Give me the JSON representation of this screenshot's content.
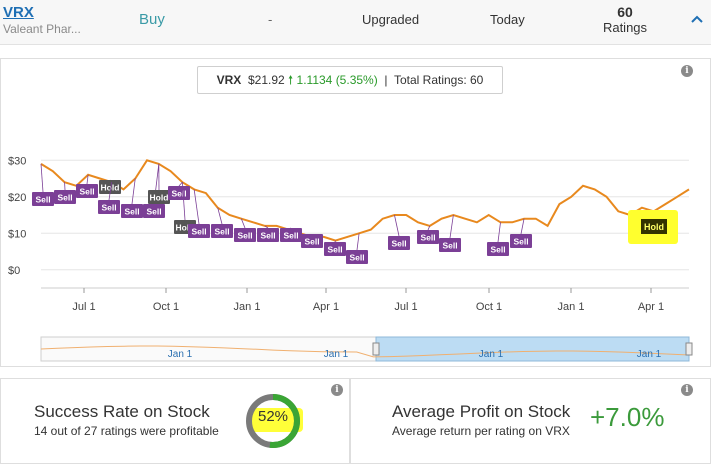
{
  "header": {
    "ticker": "VRX",
    "company": "Valeant Phar...",
    "rating": "Buy",
    "price_target": "-",
    "action": "Upgraded",
    "date": "Today",
    "ratings_count": "60",
    "ratings_label": "Ratings",
    "collapse_icon": "chevron-up-icon"
  },
  "price_summary": {
    "ticker": "VRX",
    "price": "$21.92",
    "change": "1.1134",
    "change_pct": "(5.35%)",
    "separator": "|",
    "total_ratings": "Total Ratings: 60"
  },
  "chart_data": {
    "type": "line",
    "y_ticks": [
      "$30",
      "$20",
      "$10",
      "$0"
    ],
    "x_ticks": [
      "Jul 1",
      "Oct 1",
      "Jan 1",
      "Apr 1",
      "Jul 1",
      "Oct 1",
      "Jan 1",
      "Apr 1"
    ],
    "navigator_labels": [
      "Jan 1",
      "Jan 1",
      "Jan 1",
      "Jan 1"
    ],
    "series": [
      {
        "values": [
          29,
          27,
          24,
          23,
          26,
          25,
          24,
          22,
          25,
          30,
          29,
          27,
          24,
          22,
          21,
          17,
          15,
          14,
          13,
          12,
          12,
          11,
          10,
          9,
          9,
          8,
          9,
          10,
          11,
          14,
          15,
          15,
          13,
          12,
          14,
          15,
          14,
          13,
          15,
          13,
          13,
          14,
          14,
          12,
          18,
          20,
          23,
          22,
          20,
          16,
          15,
          17,
          16,
          18,
          20,
          22
        ]
      }
    ],
    "badges": [
      "Sell",
      "Sell",
      "Sell",
      "Hold",
      "Sell",
      "Sell",
      "Sell",
      "Hold",
      "Sell",
      "Hold",
      "Sell",
      "Sell",
      "Sell",
      "Sell",
      "Sell",
      "Sell",
      "Sell",
      "Sell",
      "Sell",
      "Sell",
      "Sell",
      "Sell",
      "Sell",
      "Sell",
      "Hold"
    ],
    "colors": {
      "line": "#e8891e",
      "sell": "#7b3f96",
      "hold_gray": "#555555",
      "hold_latest": "#333300",
      "navigator_fill": "#bcdcf3"
    }
  },
  "success": {
    "title": "Success Rate on Stock",
    "detail": "14 out of 27 ratings were profitable",
    "percent": "52%",
    "rate": 0.52
  },
  "profit": {
    "title": "Average Profit on Stock",
    "detail": "Average return per rating on VRX",
    "value": "+7.0%"
  }
}
